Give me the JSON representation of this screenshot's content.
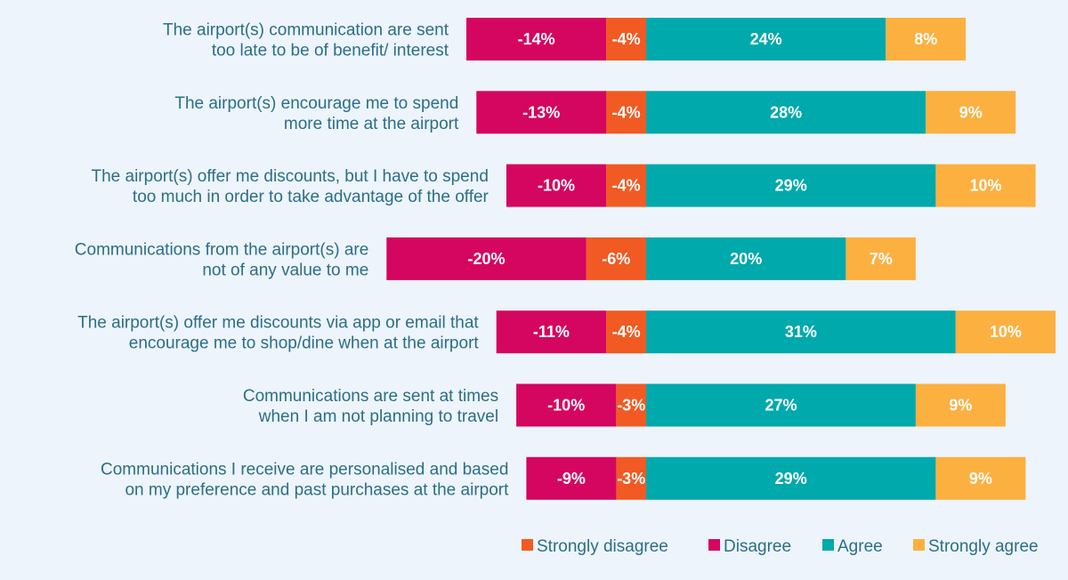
{
  "chart_data": {
    "type": "bar",
    "orientation": "horizontal",
    "stacked": "diverging",
    "categories": [
      "The airport(s) communication are sent\ntoo late to be of benefit/ interest",
      "The airport(s) encourage me to spend\nmore time at the airport",
      "The airport(s) offer me discounts, but I have to spend\ntoo much in order to take advantage of the offer",
      "Communications from the airport(s) are\nnot of any value to me",
      "The airport(s) offer me discounts via app or email that\nencourage me to shop/dine when at the airport",
      "Communications are sent at times\nwhen I am not planning to travel",
      "Communications I receive are personalised and based\non my preference and past purchases at the airport"
    ],
    "series": [
      {
        "name": "Disagree",
        "color": "#d4065f",
        "values": [
          -14,
          -13,
          -10,
          -20,
          -11,
          -10,
          -9
        ]
      },
      {
        "name": "Strongly disagree",
        "color": "#f15a22",
        "values": [
          -4,
          -4,
          -4,
          -6,
          -4,
          -3,
          -3
        ]
      },
      {
        "name": "Agree",
        "color": "#00a9ac",
        "values": [
          24,
          28,
          29,
          20,
          31,
          27,
          29
        ]
      },
      {
        "name": "Strongly agree",
        "color": "#fbb040",
        "values": [
          8,
          9,
          10,
          7,
          10,
          9,
          9
        ]
      }
    ],
    "legend": {
      "position": "bottom-right",
      "order": [
        "Strongly disagree",
        "Disagree",
        "Agree",
        "Strongly agree"
      ]
    },
    "grid": false,
    "axes_visible": false
  }
}
